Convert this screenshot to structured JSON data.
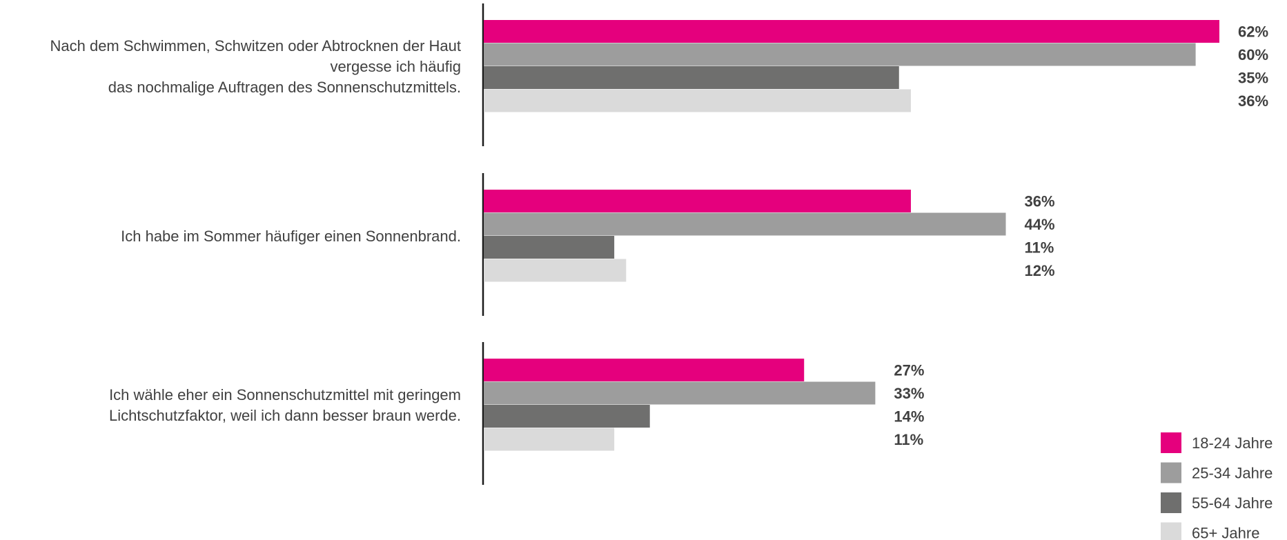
{
  "chart_data": {
    "type": "bar",
    "orientation": "horizontal",
    "categories": [
      [
        "Nach dem Schwimmen, Schwitzen oder Abtrocknen der Haut",
        "vergesse ich häufig",
        "das nochmalige Auftragen des Sonnenschutzmittels."
      ],
      [
        "Ich habe im Sommer häufiger einen Sonnenbrand."
      ],
      [
        "Ich wähle eher ein Sonnenschutzmittel mit geringem",
        "Lichtschutzfaktor, weil ich dann besser braun werde."
      ]
    ],
    "series": [
      {
        "name": "18-24 Jahre",
        "color": "#e5007d",
        "values": [
          62,
          36,
          27
        ],
        "labels": [
          "62%",
          "36%",
          "27%"
        ]
      },
      {
        "name": "25-34 Jahre",
        "color": "#9d9d9d",
        "values": [
          60,
          44,
          33
        ],
        "labels": [
          "60%",
          "44%",
          "33%"
        ]
      },
      {
        "name": "55-64 Jahre",
        "color": "#6f6f6e",
        "values": [
          35,
          11,
          14
        ],
        "labels": [
          "35%",
          "11%",
          "14%"
        ]
      },
      {
        "name": "65+ Jahre",
        "color": "#dadada",
        "values": [
          36,
          12,
          11
        ],
        "labels": [
          "36%",
          "12%",
          "11%"
        ]
      }
    ],
    "unit": "%",
    "xlim": [
      0,
      62
    ],
    "grid": false,
    "legend_position": "bottom-right",
    "value_labels_position": "right of each group"
  }
}
